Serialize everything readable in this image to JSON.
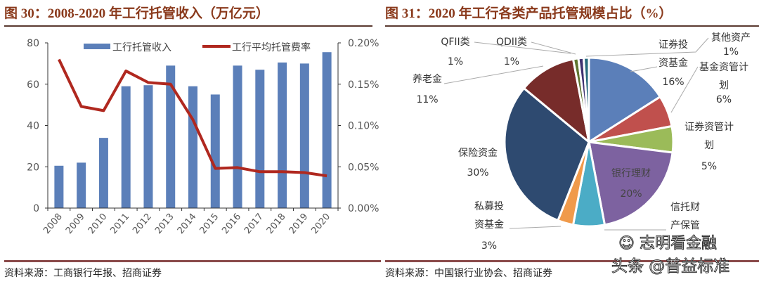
{
  "left": {
    "title": "图 30：2008-2020 年工行托管收入（万亿元）",
    "source": "资料来源：工商银行年报、招商证券"
  },
  "right": {
    "title": "图 31：2020 年工行各类产品托管规模占比（%）",
    "source": "资料来源：中国银行业协会、招商证券"
  },
  "watermarks": {
    "wechat": "志明看金融",
    "toutiao": "头条 @普益标准"
  },
  "chart_data": [
    {
      "type": "bar+line",
      "categories": [
        "2008",
        "2009",
        "2010",
        "2011",
        "2012",
        "2013",
        "2014",
        "2015",
        "2016",
        "2017",
        "2018",
        "2019",
        "2020"
      ],
      "series": [
        {
          "name": "工行托管收入",
          "type": "bar",
          "axis": "left",
          "color": "#5b7fb9",
          "values": [
            20.5,
            22,
            34,
            59,
            59.5,
            69,
            59,
            55,
            69,
            67,
            70.5,
            70,
            75.5
          ]
        },
        {
          "name": "工行平均托管费率",
          "type": "line",
          "axis": "right",
          "color": "#b0281f",
          "values": [
            0.18,
            0.123,
            0.118,
            0.166,
            0.152,
            0.15,
            0.107,
            0.048,
            0.049,
            0.044,
            0.044,
            0.043,
            0.039
          ]
        }
      ],
      "y_left": {
        "lim": [
          0,
          80
        ],
        "ticks": [
          "0",
          "20",
          "40",
          "60",
          "80"
        ]
      },
      "y_right": {
        "lim": [
          0,
          0.2
        ],
        "unit": "%",
        "ticks": [
          "0.00%",
          "0.05%",
          "0.10%",
          "0.15%",
          "0.20%"
        ]
      },
      "legend": "top",
      "grid": false
    },
    {
      "type": "pie",
      "slices": [
        {
          "label": "证券投资基金",
          "value": 16,
          "pct": "16%",
          "color": "#5b7fb9"
        },
        {
          "label": "基金资管计划",
          "value": 6,
          "pct": "6%",
          "color": "#c0504d"
        },
        {
          "label": "证券资管计划",
          "value": 5,
          "pct": "5%",
          "color": "#9bbb59"
        },
        {
          "label": "银行理财",
          "value": 20,
          "pct": "20%",
          "color": "#7d62a0"
        },
        {
          "label": "信托财产保管",
          "value": 6,
          "pct": "",
          "color": "#4bacc6"
        },
        {
          "label": "私募投资基金",
          "value": 3,
          "pct": "3%",
          "color": "#f09a4b"
        },
        {
          "label": "保险资金",
          "value": 30,
          "pct": "30%",
          "color": "#2e4a70"
        },
        {
          "label": "养老金",
          "value": 11,
          "pct": "11%",
          "color": "#772c2a"
        },
        {
          "label": "QFII类",
          "value": 1,
          "pct": "1%",
          "color": "#5f7530"
        },
        {
          "label": "QDII类",
          "value": 1,
          "pct": "1%",
          "color": "#3f3170"
        },
        {
          "label": "其他资产",
          "value": 1,
          "pct": "1%",
          "color": "#276a7c"
        }
      ]
    }
  ]
}
